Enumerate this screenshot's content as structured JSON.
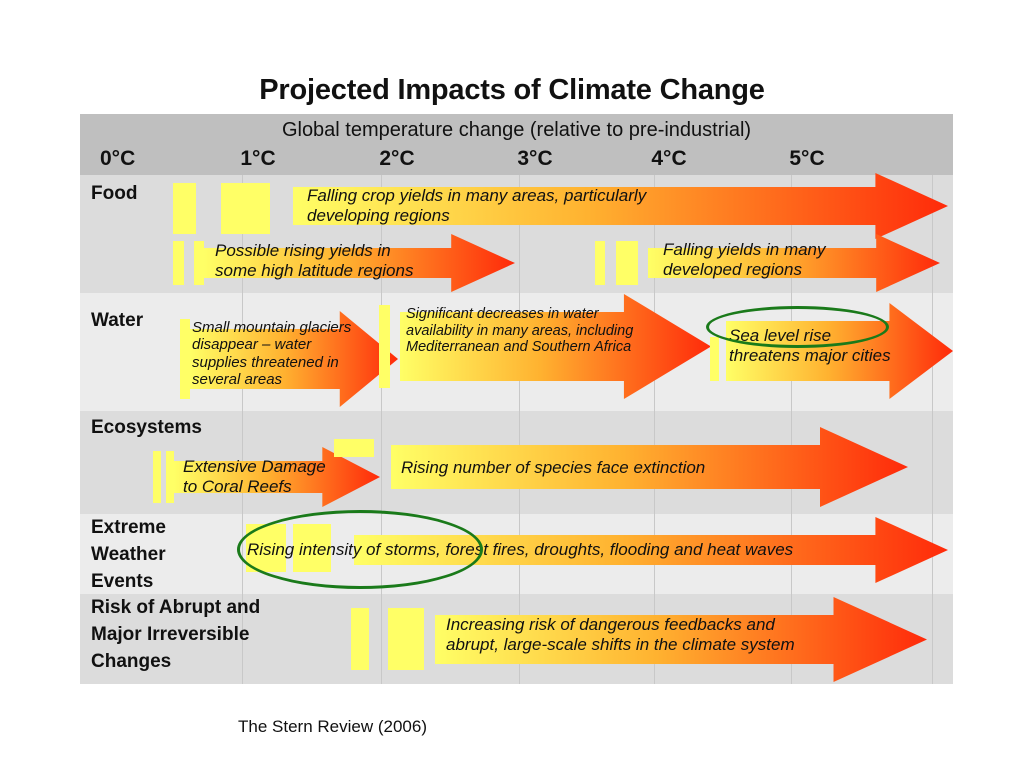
{
  "title": "Projected Impacts of Climate Change",
  "header": {
    "text": "Global temperature change (relative to pre-industrial)",
    "ticks": [
      "0°C",
      "1°C",
      "2°C",
      "3°C",
      "4°C",
      "5°C"
    ]
  },
  "rows": {
    "food": "Food",
    "water": "Water",
    "ecosystems": "Ecosystems",
    "extreme_l1": "Extreme",
    "extreme_l2": "Weather",
    "extreme_l3": "Events",
    "abrupt_l1": "Risk of Abrupt and",
    "abrupt_l2": "Major Irreversible",
    "abrupt_l3": "Changes"
  },
  "impacts": {
    "falling_crop_l1": "Falling crop yields in many areas, particularly",
    "falling_crop_l2": "developing regions",
    "rising_yields_l1": "Possible rising yields in",
    "rising_yields_l2": "some high latitude regions",
    "falling_dev_l1": "Falling yields in many",
    "falling_dev_l2": "developed regions",
    "glaciers_l1": "Small mountain glaciers",
    "glaciers_l2": "disappear  – water",
    "glaciers_l3": "supplies threatened in",
    "glaciers_l4": "several areas",
    "water_dec_l1": "Significant decreases in water",
    "water_dec_l2": "availability in many areas, including",
    "water_dec_l3": "Mediterranean and Southern Africa",
    "sea_l1": "Sea level rise",
    "sea_l2": "threatens major cities",
    "coral_l1": "Extensive Damage",
    "coral_l2": "to Coral Reefs",
    "species": "Rising number of species face extinction",
    "storms": "Rising intensity of storms, forest fires, droughts, flooding and heat waves",
    "feedback_l1": "Increasing risk of dangerous feedbacks and",
    "feedback_l2": "abrupt, large-scale shifts in the climate system"
  },
  "colors": {
    "yellow": "#ffff66",
    "red": "#ff2a0a",
    "circle": "#1a7a1a"
  },
  "source": "The Stern Review (2006)"
}
